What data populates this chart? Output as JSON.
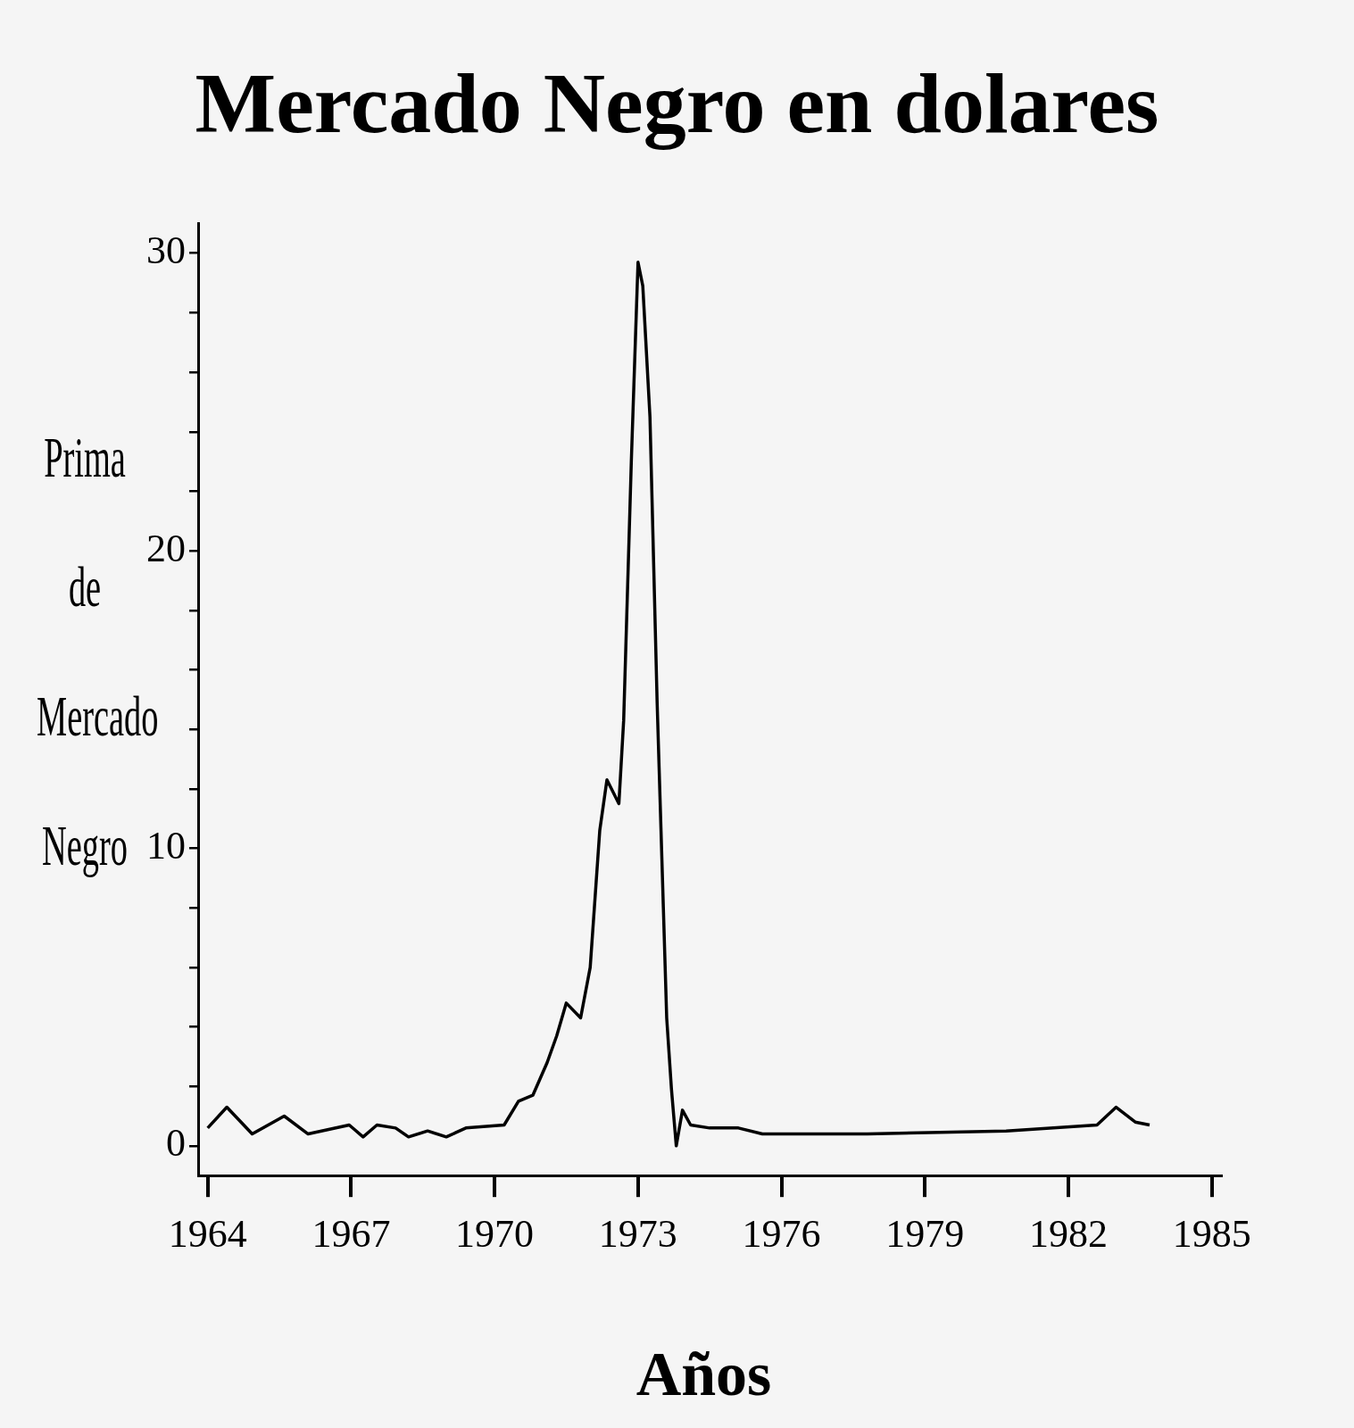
{
  "chart_data": {
    "type": "line",
    "title": "Mercado Negro en dolares",
    "xlabel": "Años",
    "ylabel": "Prima de Mercado Negro",
    "x": [
      1964.0,
      1964.4,
      1964.93,
      1965.6,
      1966.1,
      1966.96,
      1967.25,
      1967.54,
      1967.93,
      1968.2,
      1968.6,
      1968.99,
      1969.4,
      1970.2,
      1970.5,
      1970.8,
      1971.1,
      1971.3,
      1971.5,
      1971.8,
      1972.0,
      1972.2,
      1972.35,
      1972.6,
      1972.7,
      1972.86,
      1973.0,
      1973.1,
      1973.25,
      1973.4,
      1973.6,
      1973.7,
      1973.8,
      1973.93,
      1974.1,
      1974.5,
      1975.1,
      1975.6,
      1975.9,
      1977.8,
      1980.7,
      1982.6,
      1983.0,
      1983.4,
      1983.7
    ],
    "values": [
      0.6,
      1.3,
      0.4,
      1.0,
      0.4,
      0.7,
      0.3,
      0.7,
      0.6,
      0.3,
      0.5,
      0.3,
      0.6,
      0.7,
      1.5,
      1.7,
      2.8,
      3.7,
      4.8,
      4.3,
      6.0,
      10.6,
      12.3,
      11.5,
      14.3,
      23.0,
      29.7,
      28.9,
      24.5,
      14.9,
      4.3,
      1.9,
      0,
      1.2,
      0.7,
      0.6,
      0.6,
      0.4,
      0.4,
      0.4,
      0.5,
      0.7,
      1.3,
      0.8,
      0.7
    ],
    "color": "#000000",
    "marker": "none",
    "line_style": "solid",
    "grid": false,
    "legend": false,
    "xlim": [
      1963.8,
      1985.2
    ],
    "ylim": [
      -1,
      31
    ],
    "xticks": [
      1964,
      1967,
      1970,
      1973,
      1976,
      1979,
      1982,
      1985
    ],
    "yticks": [
      0,
      {
        "value": 2,
        "label": null
      },
      {
        "value": 4,
        "label": null
      },
      {
        "value": 6,
        "label": null
      },
      {
        "value": 8,
        "label": null
      },
      10,
      {
        "value": 12,
        "label": null
      },
      {
        "value": 14,
        "label": null
      },
      {
        "value": 16,
        "label": null
      },
      {
        "value": 18,
        "label": null
      },
      20,
      {
        "value": 22,
        "label": null
      },
      {
        "value": 24,
        "label": null
      },
      {
        "value": 26,
        "label": null
      },
      {
        "value": 28,
        "label": null
      },
      30
    ]
  }
}
